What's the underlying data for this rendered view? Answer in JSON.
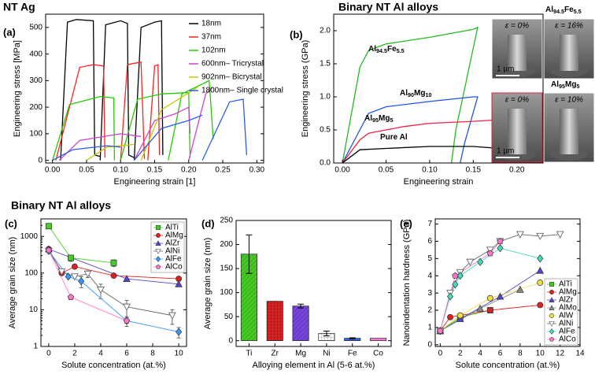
{
  "chart_data": [
    {
      "type": "line",
      "panel_label": "(a)",
      "title": "NT Ag",
      "xlabel": "Engineering strain [1]",
      "ylabel": "Engineering stress [MPa]",
      "xlim": [
        -0.01,
        0.31
      ],
      "ylim": [
        -10,
        550
      ],
      "xticks": [
        {
          "value": 0,
          "label": "0.00"
        },
        {
          "value": 0.05,
          "label": "0.05"
        },
        {
          "value": 0.1,
          "label": "0.10"
        },
        {
          "value": 0.15,
          "label": "0.15"
        },
        {
          "value": 0.2,
          "label": "0.20"
        },
        {
          "value": 0.25,
          "label": "0.25"
        },
        {
          "value": 0.3,
          "label": "0.30"
        }
      ],
      "yticks": [
        0,
        100,
        200,
        300,
        400,
        500
      ],
      "legend": "upper right",
      "series": [
        {
          "name": "18nm",
          "color": "#000000",
          "x": [
            0.012,
            0.022,
            0.035,
            0.06,
            0.062,
            0.07,
            null,
            0.07,
            0.078,
            0.1,
            0.11,
            0.112,
            0.12,
            null,
            0.12,
            0.13,
            0.15,
            0.16,
            0.162
          ],
          "values": [
            0,
            520,
            530,
            525,
            20,
            15,
            null,
            0,
            510,
            525,
            515,
            20,
            10,
            null,
            0,
            500,
            520,
            525,
            20
          ]
        },
        {
          "name": "37nm",
          "color": "#ff2020",
          "x": [
            0.005,
            0.04,
            0.06,
            0.075,
            0.077,
            null,
            0.1,
            0.11,
            0.13,
            0.135,
            null,
            0.14,
            0.15,
            0.155,
            0.157
          ],
          "values": [
            0,
            350,
            360,
            355,
            10,
            null,
            0,
            360,
            370,
            5,
            null,
            0,
            355,
            360,
            20
          ]
        },
        {
          "name": "102nm",
          "color": "#22cc00",
          "x": [
            0,
            0.025,
            0.07,
            0.09,
            0.091,
            null,
            0.1,
            0.125,
            0.16,
            0.2,
            0.202,
            null,
            0.17,
            0.19,
            0.23,
            0.236
          ],
          "values": [
            0,
            210,
            240,
            235,
            0,
            null,
            0,
            230,
            250,
            255,
            10,
            null,
            0,
            250,
            300,
            80
          ]
        },
        {
          "name": "600nm– Tricrystal",
          "color": "#cc44cc",
          "x": [
            0.01,
            0.04,
            0.1,
            0.13,
            null,
            0.12,
            0.15,
            0.18,
            0.2,
            0.202,
            null,
            0.2,
            0.225,
            0.235
          ],
          "values": [
            0,
            75,
            100,
            90,
            null,
            0,
            150,
            175,
            200,
            100,
            null,
            0,
            250,
            275
          ]
        },
        {
          "name": "902nm– Bicrystal",
          "color": "#c8c800",
          "x": [
            0.05,
            0.08,
            0.12,
            null,
            0.13,
            0.16,
            0.21,
            0.215
          ],
          "values": [
            0,
            50,
            60,
            null,
            0,
            190,
            270,
            280
          ]
        },
        {
          "name": "1800nm– Single crystal",
          "color": "#2a5ce8",
          "x": [
            0,
            0.03,
            0.08,
            0.1,
            null,
            0.12,
            0.16,
            0.2,
            0.22,
            null,
            0.22,
            0.26,
            0.28,
            0.285
          ],
          "values": [
            0,
            40,
            55,
            50,
            null,
            0,
            120,
            150,
            170,
            null,
            0,
            220,
            230,
            20
          ]
        }
      ]
    },
    {
      "type": "line",
      "panel_label": "(b)",
      "title": "Binary NT Al alloys",
      "xlabel": "Engineering strain",
      "ylabel": "Engineering stress (GPa)",
      "xlim": [
        -0.01,
        0.23
      ],
      "ylim": [
        0,
        2.25
      ],
      "xticks": [
        {
          "value": 0,
          "label": "0.00"
        },
        {
          "value": 0.05,
          "label": "0.05"
        },
        {
          "value": 0.1,
          "label": "0.10"
        },
        {
          "value": 0.15,
          "label": "0.15"
        },
        {
          "value": 0.2,
          "label": "0.20"
        }
      ],
      "yticks": [
        {
          "value": 0,
          "label": "0.0"
        },
        {
          "value": 0.5,
          "label": "0.5"
        },
        {
          "value": 1,
          "label": "1.0"
        },
        {
          "value": 1.5,
          "label": "1.5"
        },
        {
          "value": 2,
          "label": "2.0"
        }
      ],
      "series": [
        {
          "name": "Al94.5Fe5.5",
          "color": "#22bb22",
          "x": [
            0,
            0.02,
            0.03,
            0.05,
            0.1,
            0.15,
            0.155,
            0.13,
            0.125
          ],
          "values": [
            0,
            1.45,
            1.7,
            1.8,
            1.9,
            2.02,
            2.05,
            0.5,
            0
          ]
        },
        {
          "name": "Al90Mg10",
          "color": "#2255dd",
          "x": [
            0,
            0.03,
            0.05,
            0.1,
            0.15,
            0.155,
            0.14,
            0.135
          ],
          "values": [
            0,
            0.75,
            0.85,
            0.93,
            1.0,
            1.0,
            0.3,
            0
          ]
        },
        {
          "name": "Al95Mg5",
          "color": "#ee2244",
          "x": [
            0,
            0.02,
            0.03,
            0.07,
            0.1,
            0.15,
            0.2,
            0.22
          ],
          "values": [
            0,
            0.35,
            0.45,
            0.55,
            0.6,
            0.63,
            0.67,
            0.68
          ]
        },
        {
          "name": "Pure Al",
          "color": "#000000",
          "x": [
            0,
            0.02,
            0.05,
            0.1,
            0.15,
            0.18,
            0.185
          ],
          "values": [
            0,
            0.2,
            0.22,
            0.25,
            0.25,
            0.22,
            0
          ]
        }
      ],
      "inset_titles": [
        "Al94.5Fe5.5",
        "Al95Mg5"
      ],
      "inset_labels": [
        "ε = 0%",
        "ε = 16%",
        "ε = 0%",
        "ε = 10%"
      ],
      "scale_bars": [
        "1 µm",
        "1 µm"
      ]
    },
    {
      "type": "scatter",
      "panel_label": "(c)",
      "title": "Binary NT Al alloys",
      "xlabel": "Solute concentration (at.%)",
      "ylabel": "Average grain size (nm)",
      "yscale": "log",
      "xlim": [
        -0.6,
        10.6
      ],
      "ylim": [
        1,
        3000
      ],
      "xticks": [
        0,
        2,
        4,
        6,
        8,
        10
      ],
      "yticks": [
        1,
        10,
        100,
        1000
      ],
      "legend": "upper right",
      "series": [
        {
          "name": "AlTi",
          "color": "#44cc22",
          "marker": "square",
          "x": [
            0,
            1.7,
            5
          ],
          "values": [
            1900,
            260,
            190
          ],
          "errors": [
            null,
            50,
            40
          ]
        },
        {
          "name": "AlMg",
          "color": "#e02020",
          "marker": "circle",
          "x": [
            0,
            1,
            2,
            5,
            10
          ],
          "values": [
            450,
            100,
            150,
            85,
            70
          ]
        },
        {
          "name": "AlZr",
          "color": "#5544cc",
          "marker": "triangle",
          "x": [
            0,
            6,
            10
          ],
          "values": [
            450,
            70,
            50
          ]
        },
        {
          "name": "AlNi",
          "color": "#666666",
          "marker": "triangle-down-open",
          "x": [
            0,
            1,
            2,
            3,
            4,
            6,
            9.5
          ],
          "values": [
            400,
            110,
            80,
            95,
            35,
            12,
            7
          ],
          "errors": [
            null,
            20,
            null,
            20,
            15,
            6,
            3
          ]
        },
        {
          "name": "AlFe",
          "color": "#3399ff",
          "marker": "diamond",
          "x": [
            0,
            1.5,
            2.5,
            6,
            10
          ],
          "values": [
            400,
            80,
            60,
            5,
            2.5
          ],
          "errors": [
            null,
            null,
            20,
            1.5,
            0.8
          ]
        },
        {
          "name": "AlCo",
          "color": "#ff77cc",
          "marker": "pentagon",
          "x": [
            0,
            1.7,
            6
          ],
          "values": [
            420,
            22,
            5
          ]
        }
      ]
    },
    {
      "type": "bar",
      "panel_label": "(d)",
      "xlabel": "Alloying element in Al (5-6 at.%)",
      "ylabel": "Average grain size (nm)",
      "categories": [
        "Ti",
        "Zr",
        "Mg",
        "Ni",
        "Fe",
        "Co"
      ],
      "values": [
        180,
        82,
        72,
        15,
        5,
        5
      ],
      "errors": [
        40,
        null,
        4,
        5,
        1,
        null
      ],
      "colors": [
        "#44cc22",
        "#e02020",
        "#7744dd",
        "#ffffff",
        "#3366ee",
        "#ff77dd"
      ],
      "hatch": [
        "diag",
        "grid",
        "diag",
        "grid",
        "none",
        "none"
      ],
      "ylim": [
        -12,
        250
      ],
      "yticks": [
        0,
        50,
        100,
        150,
        200,
        250
      ]
    },
    {
      "type": "scatter",
      "panel_label": "(e)",
      "xlabel": "Solute concentration (at.%)",
      "ylabel": "Nanoindentation hardness (GPa)",
      "xlim": [
        -0.5,
        14
      ],
      "ylim": [
        -0.1,
        7.3
      ],
      "xticks": [
        0,
        2,
        4,
        6,
        8,
        10,
        12,
        14
      ],
      "yticks": [
        0,
        1,
        2,
        3,
        4,
        5,
        6,
        7
      ],
      "legend": "lower right",
      "series": [
        {
          "name": "AlTi",
          "color": "#44cc22",
          "marker": "square",
          "x": [
            0,
            2,
            5
          ],
          "values": [
            0.8,
            1.6,
            2.0
          ]
        },
        {
          "name": "AlMg",
          "color": "#e02020",
          "marker": "circle",
          "x": [
            0,
            1,
            5,
            10
          ],
          "values": [
            0.8,
            1.6,
            2.0,
            2.3
          ]
        },
        {
          "name": "AlZr",
          "color": "#5544cc",
          "marker": "triangle",
          "x": [
            0,
            2,
            6,
            10
          ],
          "values": [
            0.8,
            1.5,
            2.8,
            4.3
          ]
        },
        {
          "name": "AlMo",
          "color": "#888888",
          "marker": "triangle",
          "x": [
            0,
            4,
            8
          ],
          "values": [
            0.8,
            2.1,
            3.2
          ]
        },
        {
          "name": "AlW",
          "color": "#eedd44",
          "marker": "circle",
          "x": [
            0,
            2,
            5,
            10
          ],
          "values": [
            0.8,
            1.7,
            2.7,
            3.6
          ]
        },
        {
          "name": "AlNi",
          "color": "#666666",
          "marker": "triangle-down-open",
          "x": [
            0,
            1,
            2,
            3,
            5,
            6,
            8,
            10,
            12
          ],
          "values": [
            0.8,
            3.0,
            4.2,
            4.8,
            5.5,
            6.0,
            6.4,
            6.3,
            6.4
          ]
        },
        {
          "name": "AlFe",
          "color": "#44ddbb",
          "marker": "diamond",
          "x": [
            0,
            1,
            1.5,
            2,
            4,
            6,
            10
          ],
          "values": [
            0.8,
            2.8,
            3.5,
            4.0,
            4.8,
            5.6,
            5.0
          ]
        },
        {
          "name": "AlCo",
          "color": "#ff77cc",
          "marker": "pentagon",
          "x": [
            0,
            1.5,
            5,
            6
          ],
          "values": [
            0.8,
            4.0,
            5.3,
            6.0
          ]
        }
      ]
    }
  ]
}
